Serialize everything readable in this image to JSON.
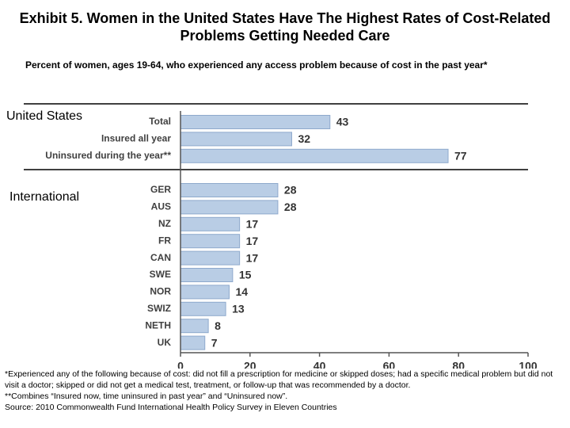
{
  "chart_data": {
    "type": "bar",
    "title": "Exhibit 5. Women in the United States Have The Highest Rates of Cost-Related Problems Getting Needed Care",
    "subtitle": "Percent of women, ages 19-64, who experienced any access problem because of cost in the past year*",
    "color": "#b9cde5",
    "groups": [
      {
        "label": "United States",
        "categories": [
          "Total",
          "Insured all year",
          "Uninsured during the year**"
        ],
        "values": [
          43,
          32,
          77
        ]
      },
      {
        "label": "International",
        "categories": [
          "GER",
          "AUS",
          "NZ",
          "FR",
          "CAN",
          "SWE",
          "NOR",
          "SWIZ",
          "NETH",
          "UK"
        ],
        "values": [
          28,
          28,
          17,
          17,
          17,
          15,
          14,
          13,
          8,
          7
        ]
      }
    ],
    "xlim": [
      0,
      100
    ],
    "xticks": [
      0,
      20,
      40,
      60,
      80,
      100
    ],
    "footnotes": [
      "*Experienced any of the following because of cost: did not fill a prescription for medicine or skipped doses; had a specific medical problem but did not visit a doctor; skipped or did not get a medical test, treatment, or follow-up that was recommended by a doctor.",
      "**Combines “Insured now, time uninsured in past year” and “Uninsured now”.",
      "Source: 2010 Commonwealth Fund International Health Policy Survey in Eleven Countries"
    ]
  }
}
